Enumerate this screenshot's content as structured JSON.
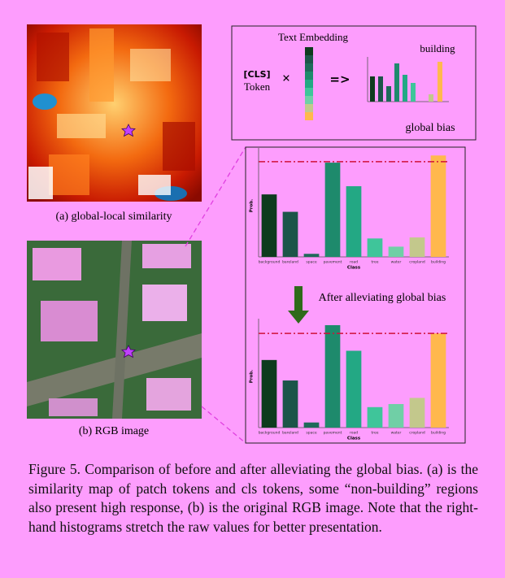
{
  "panel_a": {
    "caption": "(a) global-local similarity"
  },
  "panel_b": {
    "caption": "(b) RGB image"
  },
  "diagram": {
    "text_embedding": "Text Embedding",
    "cls": "[CLS]",
    "token": "Token",
    "times": "×",
    "arrow": "=>",
    "building": "building",
    "global_bias": "global bias"
  },
  "arrow_label": "After alleviating global bias",
  "chart_data": [
    {
      "type": "bar",
      "categories": [
        "background",
        "bareland",
        "space",
        "pavement",
        "road",
        "tree",
        "water",
        "cropland",
        "building"
      ],
      "values": [
        0.61,
        0.44,
        0.03,
        0.92,
        0.69,
        0.18,
        0.1,
        0.19,
        0.99
      ],
      "colors": [
        "#0e3b1e",
        "#1c5549",
        "#1f6a5a",
        "#1e8a6c",
        "#23a884",
        "#3fc59a",
        "#70cfa6",
        "#c3c88c",
        "#ffb84d"
      ],
      "xlabel": "Class",
      "ylabel": "Prob.",
      "ylim": [
        0,
        1
      ],
      "reference_line": 0.93,
      "reference_color": "#d0103a"
    },
    {
      "type": "bar",
      "categories": [
        "background",
        "bareland",
        "space",
        "pavement",
        "road",
        "tree",
        "water",
        "cropland",
        "building"
      ],
      "values": [
        0.66,
        0.46,
        0.05,
        1.0,
        0.75,
        0.2,
        0.23,
        0.29,
        0.92
      ],
      "colors": [
        "#0e3b1e",
        "#1c5549",
        "#1f6a5a",
        "#1e8a6c",
        "#23a884",
        "#3fc59a",
        "#70cfa6",
        "#c3c88c",
        "#ffb84d"
      ],
      "xlabel": "Class",
      "ylabel": "Prob.",
      "ylim": [
        0,
        1
      ],
      "reference_line": 0.92,
      "reference_color": "#d0103a"
    }
  ],
  "caption": "Figure 5.  Comparison of before and after alleviating the global bias. (a) is the similarity map of patch tokens and cls tokens, some “non-building” regions also present high response, (b) is the original RGB image.  Note that the right-hand histograms stretch the raw values for better presentation."
}
